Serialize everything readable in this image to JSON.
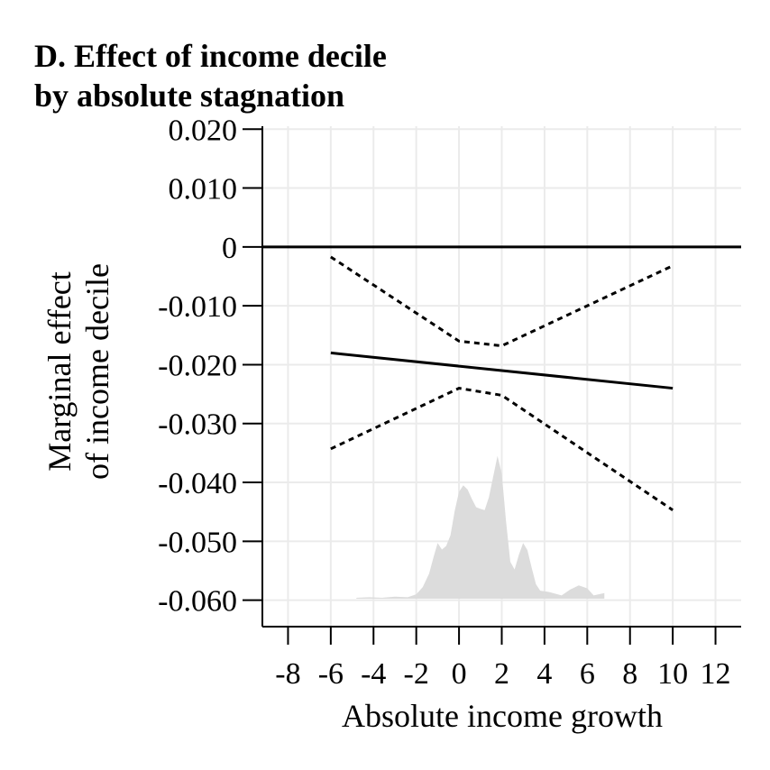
{
  "chart_data": {
    "type": "line",
    "title_lines": [
      "D. Effect of income decile",
      "by absolute stagnation"
    ],
    "xlabel": "Absolute income growth",
    "ylabel_lines": [
      "Marginal effect",
      "of income decile"
    ],
    "xlim": [
      -9.2,
      13.2
    ],
    "ylim": [
      -0.0645,
      0.0205
    ],
    "xticks": [
      -8,
      -6,
      -4,
      -2,
      0,
      2,
      4,
      6,
      8,
      10,
      12
    ],
    "xtick_labels": [
      "-8",
      "-6",
      "-4",
      "-2",
      "0",
      "2",
      "4",
      "6",
      "8",
      "10",
      "12"
    ],
    "yticks": [
      0.02,
      0.01,
      0,
      -0.01,
      -0.02,
      -0.03,
      -0.04,
      -0.05,
      -0.06
    ],
    "ytick_labels": [
      "0.020",
      "0.010",
      "0",
      "-0.010",
      "-0.020",
      "-0.030",
      "-0.040",
      "-0.050",
      "-0.060"
    ],
    "grid": true,
    "reference_line_y": 0,
    "series": [
      {
        "role": "estimate",
        "style": "solid",
        "x": [
          -6,
          10
        ],
        "y": [
          -0.018,
          -0.024
        ]
      },
      {
        "role": "upper-ci",
        "style": "dotted",
        "x": [
          -6,
          0,
          2,
          10
        ],
        "y": [
          -0.0017,
          -0.016,
          -0.0168,
          -0.0032
        ]
      },
      {
        "role": "lower-ci",
        "style": "dotted",
        "x": [
          -6,
          0,
          2,
          10
        ],
        "y": [
          -0.0343,
          -0.024,
          -0.0252,
          -0.0447
        ]
      }
    ],
    "density": {
      "role": "distribution of absolute income growth",
      "x": [
        -4.8,
        -4.2,
        -3.6,
        -3.0,
        -2.4,
        -2.0,
        -1.7,
        -1.4,
        -1.2,
        -1.0,
        -0.8,
        -0.6,
        -0.4,
        -0.2,
        0.0,
        0.2,
        0.4,
        0.6,
        0.8,
        1.0,
        1.2,
        1.4,
        1.6,
        1.8,
        2.0,
        2.2,
        2.4,
        2.6,
        2.8,
        3.0,
        3.2,
        3.4,
        3.6,
        3.8,
        4.2,
        4.8,
        5.2,
        5.6,
        6.0,
        6.3,
        6.8
      ],
      "y": [
        -0.0596,
        -0.0595,
        -0.0596,
        -0.0594,
        -0.0595,
        -0.059,
        -0.0578,
        -0.0555,
        -0.0528,
        -0.0503,
        -0.0514,
        -0.0508,
        -0.049,
        -0.0448,
        -0.0416,
        -0.0405,
        -0.0412,
        -0.0428,
        -0.0442,
        -0.0445,
        -0.0447,
        -0.0425,
        -0.039,
        -0.0355,
        -0.0385,
        -0.0466,
        -0.0535,
        -0.0548,
        -0.0523,
        -0.0503,
        -0.0515,
        -0.0545,
        -0.0573,
        -0.0584,
        -0.0586,
        -0.0592,
        -0.0582,
        -0.0575,
        -0.058,
        -0.0592,
        -0.0588
      ],
      "color": "#dcdcdc"
    },
    "colors": {
      "line": "#000000",
      "grid": "#ebebeb",
      "density": "#dcdcdc"
    }
  }
}
